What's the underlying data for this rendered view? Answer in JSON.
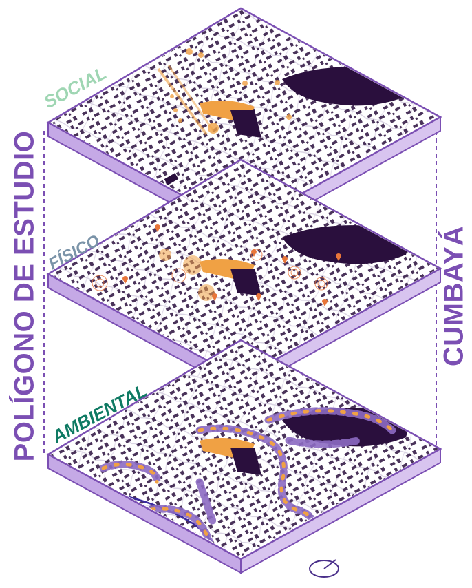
{
  "title_left": "POLÍGONO DE ESTUDIO",
  "title_right": "CUMBAYÁ",
  "layers": [
    {
      "label": "SOCIAL",
      "color": "#9fd6b3"
    },
    {
      "label": "FÍSICO",
      "color": "#7a93a8"
    },
    {
      "label": "AMBIENTAL",
      "color": "#0f7a63"
    }
  ],
  "colors": {
    "purple": "#7b4fb3",
    "purple_light": "#c5a9e6",
    "dark_building": "#2a0f3d",
    "orange": "#f0a144",
    "marker": "#e8763a",
    "tree_purple": "#8c6bc2"
  },
  "north_icon": "north-arrow-icon"
}
